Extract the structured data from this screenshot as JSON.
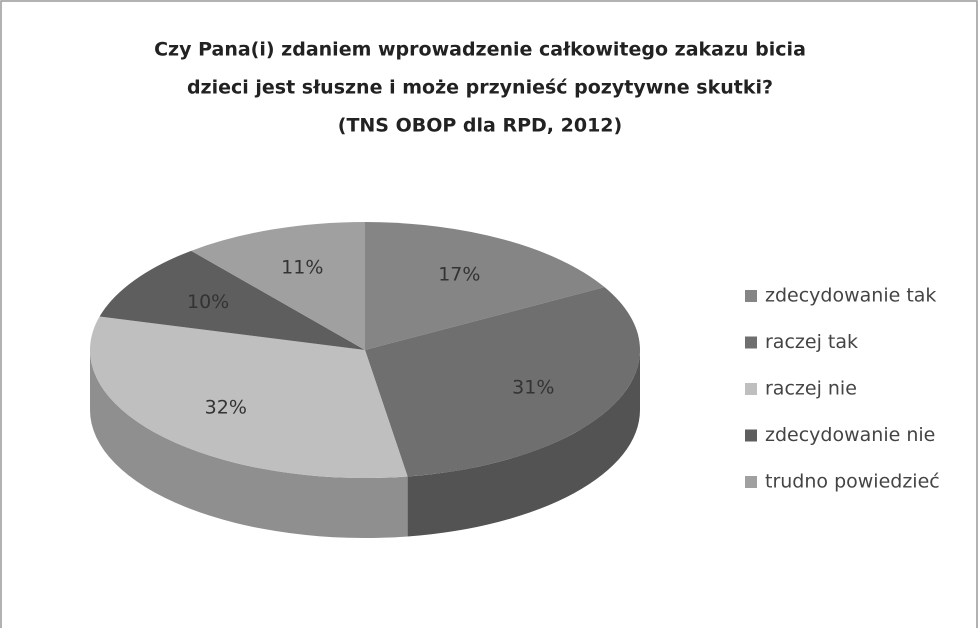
{
  "chart_data": {
    "type": "pie",
    "title": [
      "Czy Pana(i) zdaniem wprowadzenie całkowitego zakazu bicia",
      "dzieci jest słuszne i może przynieść pozytywne skutki?",
      "(TNS OBOP dla RPD, 2012)"
    ],
    "categories": [
      "zdecydowanie tak",
      "raczej tak",
      "raczej nie",
      "zdecydowanie nie",
      "trudno powiedzieć"
    ],
    "values": [
      17,
      31,
      32,
      10,
      11
    ],
    "value_labels": [
      "17%",
      "31%",
      "32%",
      "10%",
      "11%"
    ],
    "colors": [
      "#858585",
      "#6f6f6f",
      "#bfbfbf",
      "#5e5e5e",
      "#a0a0a0"
    ],
    "legend": "right"
  }
}
